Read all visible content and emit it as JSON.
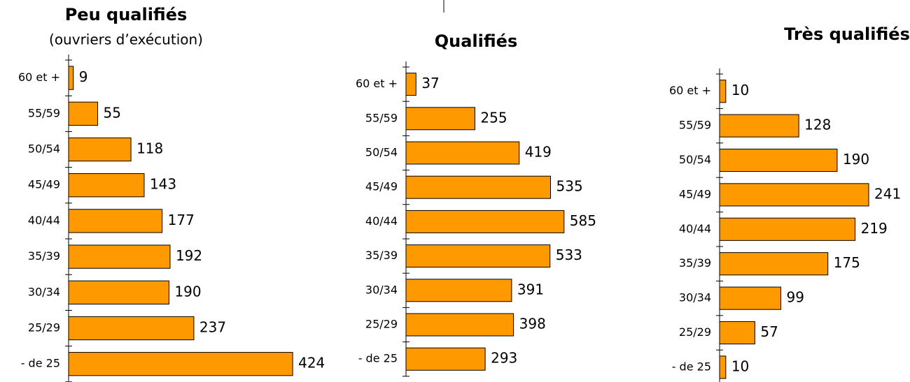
{
  "chart_data": [
    {
      "type": "bar",
      "orientation": "horizontal",
      "title": "Peu qualifiés",
      "subtitle": "(ouvriers d’exécution)",
      "color": "#ff9900",
      "categories": [
        "60 et +",
        "55/59",
        "50/54",
        "45/49",
        "40/44",
        "35/39",
        "30/34",
        "25/29",
        "- de 25"
      ],
      "values": [
        9,
        55,
        118,
        143,
        177,
        192,
        190,
        237,
        424
      ]
    },
    {
      "type": "bar",
      "orientation": "horizontal",
      "title": "Qualifiés",
      "color": "#ff9900",
      "categories": [
        "60 et +",
        "55/59",
        "50/54",
        "45/49",
        "40/44",
        "35/39",
        "30/34",
        "25/29",
        "- de 25"
      ],
      "values": [
        37,
        255,
        419,
        535,
        585,
        533,
        391,
        398,
        293
      ]
    },
    {
      "type": "bar",
      "orientation": "horizontal",
      "title": "Très qualifiés",
      "color": "#ff9900",
      "categories": [
        "60 et +",
        "55/59",
        "50/54",
        "45/49",
        "40/44",
        "35/39",
        "30/34",
        "25/29",
        "- de 25"
      ],
      "values": [
        10,
        128,
        190,
        241,
        219,
        175,
        99,
        57,
        10
      ]
    }
  ]
}
